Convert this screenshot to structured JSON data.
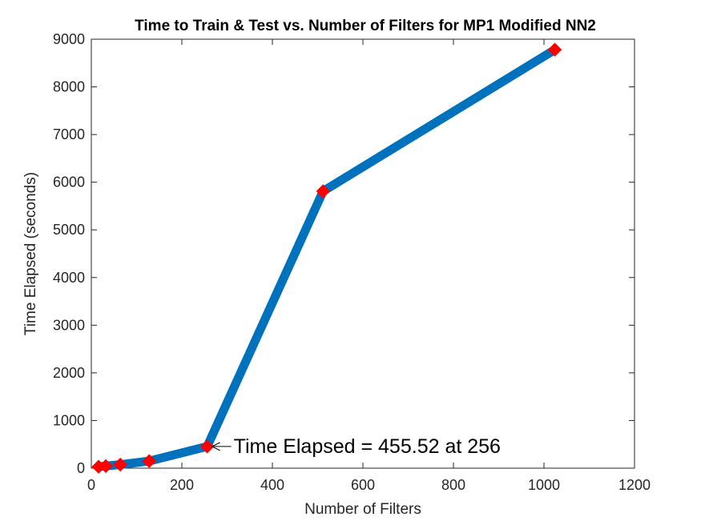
{
  "chart_data": {
    "type": "line",
    "title": "Time to Train & Test vs. Number of Filters for MP1 Modified NN2",
    "xlabel": "Number of Filters",
    "ylabel": "Time Elapsed (seconds)",
    "xlim": [
      0,
      1200
    ],
    "ylim": [
      0,
      9000
    ],
    "xticks": [
      0,
      200,
      400,
      600,
      800,
      1000,
      1200
    ],
    "yticks": [
      0,
      1000,
      2000,
      3000,
      4000,
      5000,
      6000,
      7000,
      8000,
      9000
    ],
    "grid": false,
    "series": [
      {
        "x": [
          16,
          32,
          64,
          128,
          256,
          512,
          1024
        ],
        "y": [
          30,
          45,
          75,
          150,
          455.52,
          5810,
          8780
        ],
        "line_color": "#0072BD",
        "marker_color": "#FF0000",
        "marker": "diamond"
      }
    ],
    "annotation": {
      "text": "Time Elapsed = 455.52 at 256",
      "x": 256,
      "y": 455.52
    }
  }
}
